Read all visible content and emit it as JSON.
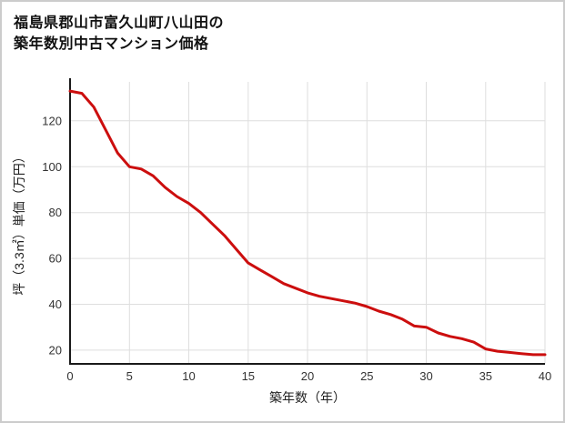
{
  "header": {
    "title_line1": "福島県郡山市富久山町八山田の",
    "title_line2": "築年数別中古マンション価格"
  },
  "chart_data": {
    "type": "line",
    "title": "福島県郡山市富久山町八山田の築年数別中古マンション価格",
    "xlabel": "築年数（年）",
    "ylabel": "坪（3.3㎡）単価（万円）",
    "x": [
      0,
      1,
      2,
      3,
      4,
      5,
      6,
      7,
      8,
      9,
      10,
      11,
      12,
      13,
      14,
      15,
      16,
      17,
      18,
      19,
      20,
      21,
      22,
      23,
      24,
      25,
      26,
      27,
      28,
      29,
      30,
      31,
      32,
      33,
      34,
      35,
      36,
      37,
      38,
      39,
      40
    ],
    "values": [
      133,
      132,
      126,
      116,
      106,
      100,
      99,
      96,
      91,
      87,
      84,
      80,
      75,
      70,
      64,
      58,
      55,
      52,
      49,
      47,
      45,
      43.5,
      42.5,
      41.5,
      40.5,
      39,
      37,
      35.5,
      33.5,
      30.5,
      30,
      27.5,
      26,
      25,
      23.5,
      20.5,
      19.5,
      19,
      18.5,
      18,
      18
    ],
    "xlim": [
      0,
      40
    ],
    "ylim": [
      14,
      137
    ],
    "xticks": [
      0,
      5,
      10,
      15,
      20,
      25,
      30,
      35,
      40
    ],
    "yticks": [
      20,
      40,
      60,
      80,
      100,
      120
    ],
    "grid": true,
    "legend": "none",
    "line_color": "#cc0e0e",
    "grid_color": "#dedede",
    "axis_color": "#1a1a1a",
    "tick_label_color": "#333333"
  }
}
